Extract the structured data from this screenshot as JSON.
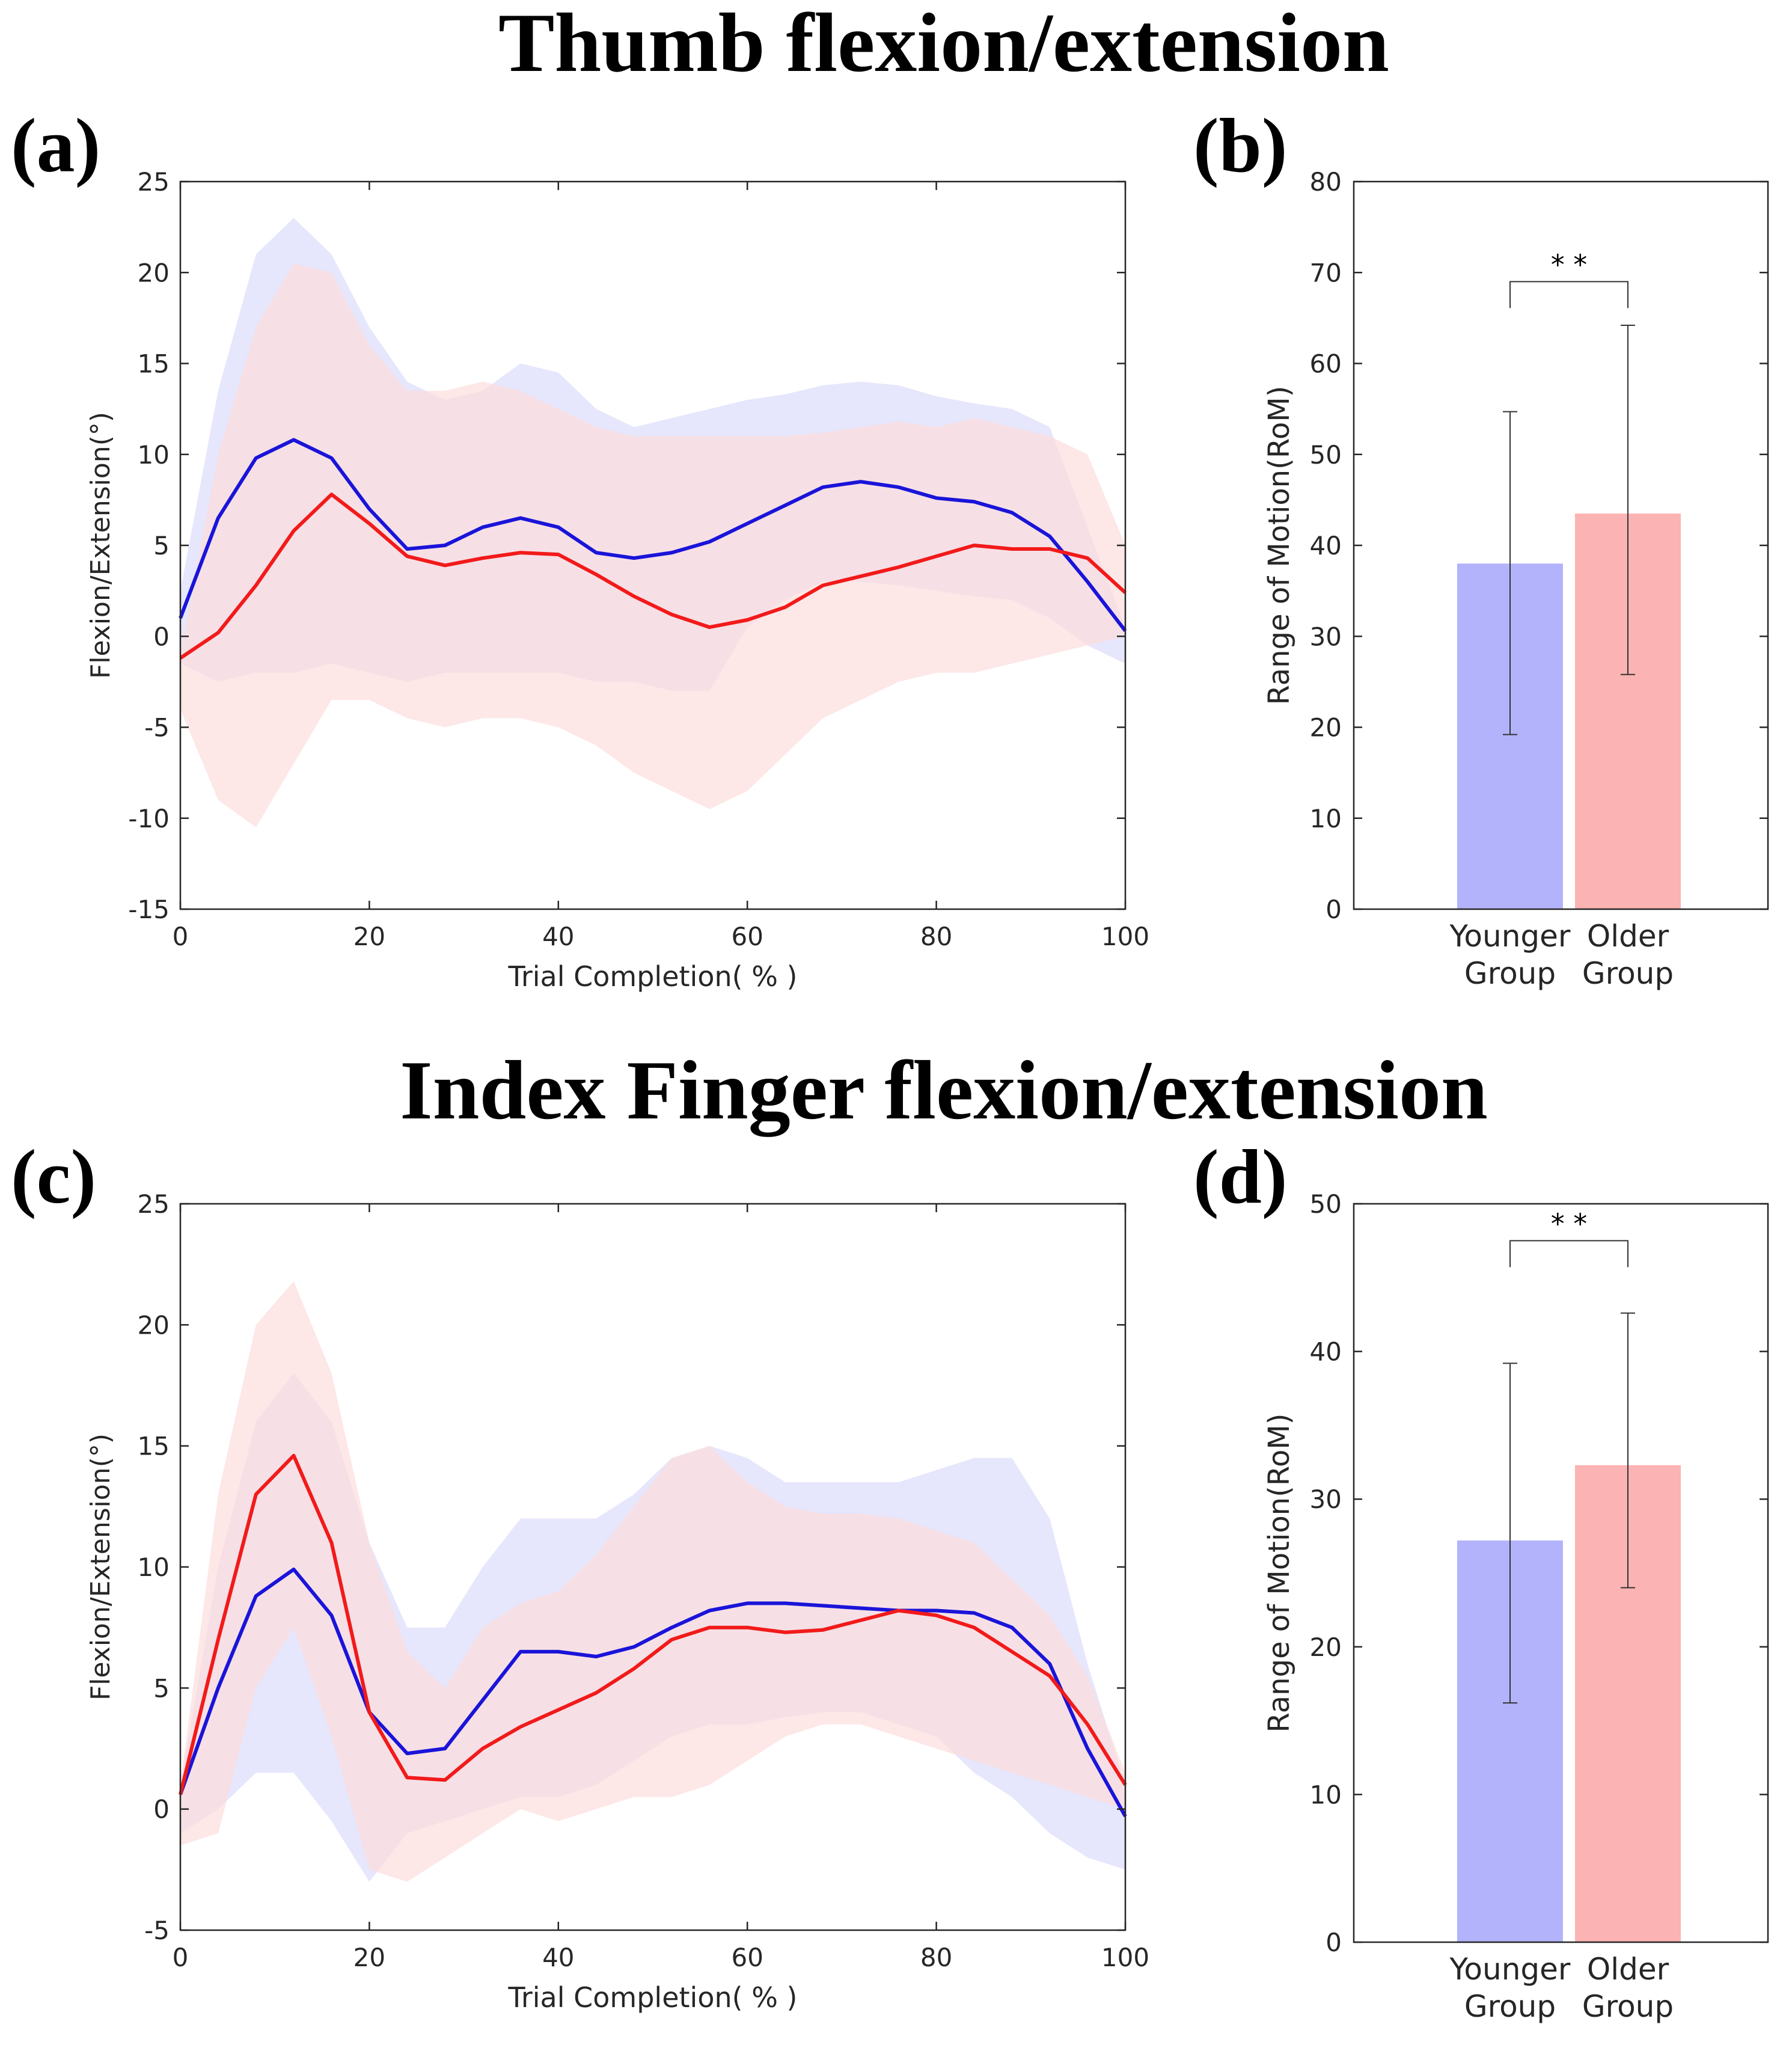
{
  "titles": {
    "top": "Thumb flexion/extension",
    "bottom": "Index Finger flexion/extension"
  },
  "colors": {
    "younger_line": "#1a14d9",
    "older_line": "#f21a1a",
    "younger_band": "#dcdcfb",
    "older_band": "#fcdede",
    "younger_bar": "#b3b3fb",
    "older_bar": "#fcb3b3"
  },
  "chart_data": [
    {
      "id": "a",
      "panel_label": "(a)",
      "type": "line",
      "title": "Thumb flexion/extension",
      "xlabel": "Trial Completion( % )",
      "ylabel": "Flexion/Extension(°)",
      "xlim": [
        0,
        100
      ],
      "ylim": [
        -15,
        25
      ],
      "xticks": [
        0,
        20,
        40,
        60,
        80,
        100
      ],
      "yticks": [
        -15,
        -10,
        -5,
        0,
        5,
        10,
        15,
        20,
        25
      ],
      "series": [
        {
          "name": "Younger Group",
          "x": [
            0,
            4,
            8,
            12,
            16,
            20,
            24,
            28,
            32,
            36,
            40,
            44,
            48,
            52,
            56,
            60,
            64,
            68,
            72,
            76,
            80,
            84,
            88,
            92,
            96,
            100
          ],
          "mean": [
            1.0,
            6.5,
            9.8,
            10.8,
            9.8,
            7.0,
            4.8,
            5.0,
            6.0,
            6.5,
            6.0,
            4.6,
            4.3,
            4.6,
            5.2,
            6.2,
            7.2,
            8.2,
            8.5,
            8.2,
            7.6,
            7.4,
            6.8,
            5.5,
            3.0,
            0.3
          ],
          "upper": [
            2.5,
            13.5,
            21.0,
            23.0,
            21.0,
            17.0,
            14.0,
            13.0,
            13.5,
            15.0,
            14.5,
            12.5,
            11.5,
            12.0,
            12.5,
            13.0,
            13.3,
            13.8,
            14.0,
            13.8,
            13.2,
            12.8,
            12.5,
            11.5,
            6.0,
            0.5
          ],
          "lower": [
            -1.5,
            -2.5,
            -2.0,
            -2.0,
            -1.5,
            -2.0,
            -2.5,
            -2.0,
            -2.0,
            -2.0,
            -2.0,
            -2.5,
            -2.5,
            -3.0,
            -3.0,
            0.5,
            2.0,
            3.0,
            3.0,
            2.8,
            2.5,
            2.2,
            2.0,
            1.0,
            -0.5,
            -1.5
          ]
        },
        {
          "name": "Older Group",
          "x": [
            0,
            4,
            8,
            12,
            16,
            20,
            24,
            28,
            32,
            36,
            40,
            44,
            48,
            52,
            56,
            60,
            64,
            68,
            72,
            76,
            80,
            84,
            88,
            92,
            96,
            100
          ],
          "mean": [
            -1.2,
            0.2,
            2.8,
            5.8,
            7.8,
            6.2,
            4.4,
            3.9,
            4.3,
            4.6,
            4.5,
            3.4,
            2.2,
            1.2,
            0.5,
            0.9,
            1.6,
            2.8,
            3.3,
            3.8,
            4.4,
            5.0,
            4.8,
            4.8,
            4.3,
            2.4
          ],
          "upper": [
            -1.0,
            10.0,
            17.0,
            20.5,
            20.0,
            16.0,
            13.5,
            13.5,
            14.0,
            13.5,
            12.5,
            11.5,
            11.0,
            11.0,
            11.0,
            11.0,
            11.0,
            11.2,
            11.5,
            11.8,
            11.5,
            12.0,
            11.5,
            11.0,
            10.0,
            5.0
          ],
          "lower": [
            -4.0,
            -9.0,
            -10.5,
            -7.0,
            -3.5,
            -3.5,
            -4.5,
            -5.0,
            -4.5,
            -4.5,
            -5.0,
            -6.0,
            -7.5,
            -8.5,
            -9.5,
            -8.5,
            -6.5,
            -4.5,
            -3.5,
            -2.5,
            -2.0,
            -2.0,
            -1.5,
            -1.0,
            -0.5,
            0.0
          ]
        }
      ]
    },
    {
      "id": "b",
      "panel_label": "(b)",
      "type": "bar",
      "ylabel": "Range of Motion(RoM)",
      "ylim": [
        0,
        80
      ],
      "yticks": [
        0,
        10,
        20,
        30,
        40,
        50,
        60,
        70,
        80
      ],
      "categories": [
        "Younger Group",
        "Older Group"
      ],
      "category_lines": [
        [
          "Younger",
          "Group"
        ],
        [
          "Older",
          "Group"
        ]
      ],
      "values": [
        38,
        43.5
      ],
      "error_low": [
        19.2,
        25.8
      ],
      "error_high": [
        54.7,
        64.2
      ],
      "significance": "* *",
      "significance_y": 69
    },
    {
      "id": "c",
      "panel_label": "(c)",
      "type": "line",
      "title": "Index Finger flexion/extension",
      "xlabel": "Trial Completion( % )",
      "ylabel": "Flexion/Extension(°)",
      "xlim": [
        0,
        100
      ],
      "ylim": [
        -5,
        25
      ],
      "xticks": [
        0,
        20,
        40,
        60,
        80,
        100
      ],
      "yticks": [
        -5,
        0,
        5,
        10,
        15,
        20,
        25
      ],
      "series": [
        {
          "name": "Younger Group",
          "x": [
            0,
            4,
            8,
            12,
            16,
            20,
            24,
            28,
            32,
            36,
            40,
            44,
            48,
            52,
            56,
            60,
            64,
            68,
            72,
            76,
            80,
            84,
            88,
            92,
            96,
            100
          ],
          "mean": [
            0.6,
            5.0,
            8.8,
            9.9,
            8.0,
            4.0,
            2.3,
            2.5,
            4.5,
            6.5,
            6.5,
            6.3,
            6.7,
            7.5,
            8.2,
            8.5,
            8.5,
            8.4,
            8.3,
            8.2,
            8.2,
            8.1,
            7.5,
            6.0,
            2.5,
            -0.3
          ],
          "upper": [
            1.0,
            10.0,
            16.0,
            18.0,
            16.0,
            11.0,
            7.5,
            7.5,
            10.0,
            12.0,
            12.0,
            12.0,
            13.0,
            14.5,
            15.0,
            14.5,
            13.5,
            13.5,
            13.5,
            13.5,
            14.0,
            14.5,
            14.5,
            12.0,
            6.0,
            1.0
          ],
          "lower": [
            -1.0,
            0.0,
            1.5,
            1.5,
            -0.5,
            -3.0,
            -1.0,
            -0.5,
            0.0,
            0.5,
            0.5,
            1.0,
            2.0,
            3.0,
            3.5,
            3.5,
            3.8,
            4.0,
            4.0,
            3.5,
            3.0,
            1.5,
            0.5,
            -1.0,
            -2.0,
            -2.5
          ]
        },
        {
          "name": "Older Group",
          "x": [
            0,
            4,
            8,
            12,
            16,
            20,
            24,
            28,
            32,
            36,
            40,
            44,
            48,
            52,
            56,
            60,
            64,
            68,
            72,
            76,
            80,
            84,
            88,
            92,
            96,
            100
          ],
          "mean": [
            0.6,
            7.0,
            13.0,
            14.6,
            11.0,
            4.0,
            1.3,
            1.2,
            2.5,
            3.4,
            4.1,
            4.8,
            5.8,
            7.0,
            7.5,
            7.5,
            7.3,
            7.4,
            7.8,
            8.2,
            8.0,
            7.5,
            6.5,
            5.5,
            3.5,
            1.0
          ],
          "upper": [
            1.0,
            13.0,
            20.0,
            21.8,
            18.0,
            11.0,
            6.5,
            5.0,
            7.5,
            8.5,
            9.0,
            10.5,
            12.5,
            14.5,
            15.0,
            13.5,
            12.5,
            12.2,
            12.2,
            12.0,
            11.5,
            11.0,
            9.5,
            8.0,
            5.5,
            1.5
          ],
          "lower": [
            -1.5,
            -1.0,
            5.0,
            7.5,
            3.0,
            -2.5,
            -3.0,
            -2.0,
            -1.0,
            0.0,
            -0.5,
            0.0,
            0.5,
            0.5,
            1.0,
            2.0,
            3.0,
            3.5,
            3.5,
            3.0,
            2.5,
            2.0,
            1.5,
            1.0,
            0.5,
            0.0
          ]
        }
      ]
    },
    {
      "id": "d",
      "panel_label": "(d)",
      "type": "bar",
      "ylabel": "Range of Motion(RoM)",
      "ylim": [
        0,
        50
      ],
      "yticks": [
        0,
        10,
        20,
        30,
        40,
        50
      ],
      "categories": [
        "Younger Group",
        "Older Group"
      ],
      "category_lines": [
        [
          "Younger",
          "Group"
        ],
        [
          "Older",
          "Group"
        ]
      ],
      "values": [
        27.2,
        32.3
      ],
      "error_low": [
        16.2,
        24.0
      ],
      "error_high": [
        39.2,
        42.6
      ],
      "significance": "* *",
      "significance_y": 47.5
    }
  ]
}
